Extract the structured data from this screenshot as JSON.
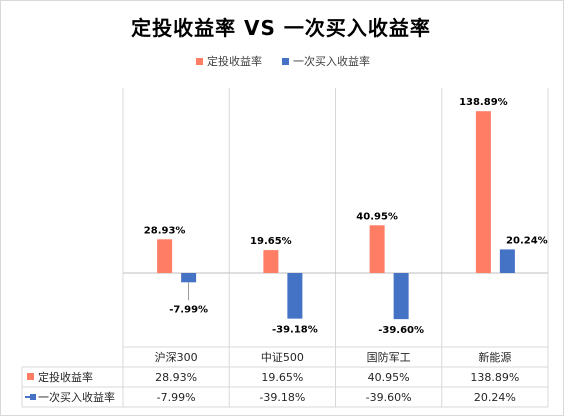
{
  "chart_data": {
    "type": "bar",
    "title": "定投收益率 VS 一次买入收益率",
    "categories": [
      "沪深300",
      "中证500",
      "国防军工",
      "新能源"
    ],
    "series": [
      {
        "name": "定投收益率",
        "color": "#FF7C65",
        "values": [
          28.93,
          19.65,
          40.95,
          138.89
        ],
        "labels": [
          "28.93%",
          "19.65%",
          "40.95%",
          "138.89%"
        ]
      },
      {
        "name": "一次买入收益率",
        "color": "#4472C4",
        "values": [
          -7.99,
          -39.18,
          -39.6,
          20.24
        ],
        "labels": [
          "-7.99%",
          "-39.18%",
          "-39.60%",
          "20.24%"
        ]
      }
    ],
    "legend_position": "top",
    "data_table": true,
    "grid": "vertical category separators"
  }
}
